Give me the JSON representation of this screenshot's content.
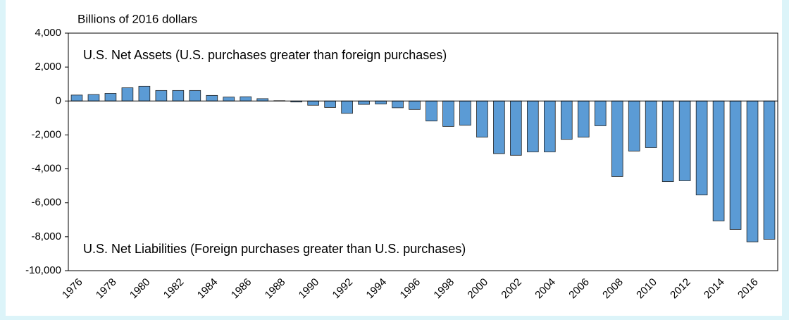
{
  "chart_data": {
    "type": "bar",
    "y_axis_label": "Billions of 2016 dollars",
    "annotations": [
      "U.S. Net Assets (U.S. purchases greater than foreign purchases)",
      "U.S. Net Liabilities (Foreign purchases greater than U.S. purchases)"
    ],
    "categories": [
      "1976",
      null,
      "1978",
      null,
      "1980",
      null,
      "1982",
      null,
      "1984",
      null,
      "1986",
      null,
      "1988",
      null,
      "1990",
      null,
      "1992",
      null,
      "1994",
      null,
      "1996",
      null,
      "1998",
      null,
      "2000",
      null,
      "2002",
      null,
      "2004",
      null,
      "2006",
      null,
      "2008",
      null,
      "2010",
      null,
      "2012",
      null,
      "2014",
      null,
      "2016",
      null
    ],
    "values": [
      350,
      380,
      450,
      780,
      870,
      620,
      620,
      620,
      330,
      230,
      250,
      140,
      20,
      -60,
      -250,
      -380,
      -730,
      -200,
      -180,
      -400,
      -500,
      -1180,
      -1500,
      -1430,
      -2130,
      -3100,
      -3200,
      -3000,
      -3000,
      -2260,
      -2130,
      -1460,
      -4450,
      -2950,
      -2750,
      -4750,
      -4700,
      -5540,
      -7070,
      -7570,
      -8300,
      -8150
    ],
    "color": "#5b9bd5",
    "ylim": [
      -10000,
      4000
    ],
    "yticks": [
      {
        "value": -10000,
        "label": "-10,000"
      },
      {
        "value": -8000,
        "label": "-8,000"
      },
      {
        "value": -6000,
        "label": "-6,000"
      },
      {
        "value": -4000,
        "label": "-4,000"
      },
      {
        "value": -2000,
        "label": "-2,000"
      },
      0,
      {
        "value": 2000,
        "label": "2,000"
      },
      {
        "value": 4000,
        "label": "4,000"
      }
    ],
    "grid": false
  }
}
